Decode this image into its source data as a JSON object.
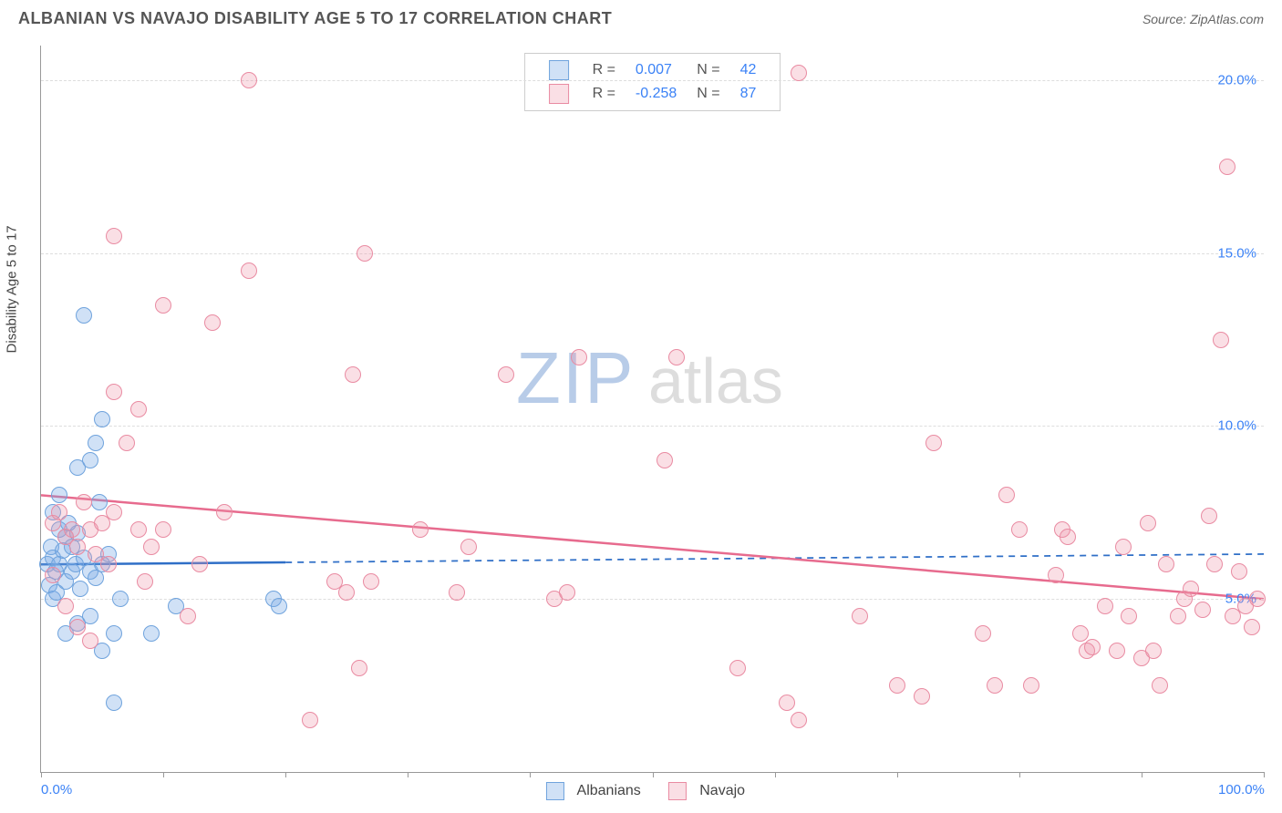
{
  "title": "ALBANIAN VS NAVAJO DISABILITY AGE 5 TO 17 CORRELATION CHART",
  "source_label": "Source: ZipAtlas.com",
  "watermark": {
    "part1": "ZIP",
    "part2": "atlas"
  },
  "chart": {
    "type": "scatter",
    "y_axis_title": "Disability Age 5 to 17",
    "background_color": "#ffffff",
    "grid_color": "#dddddd",
    "axis_color": "#999999",
    "tick_label_color": "#3b82f6",
    "xlim": [
      0,
      100
    ],
    "ylim": [
      0,
      21
    ],
    "x_ticks": [
      0,
      10,
      20,
      30,
      40,
      50,
      60,
      70,
      80,
      90,
      100
    ],
    "x_tick_labels": {
      "0": "0.0%",
      "100": "100.0%"
    },
    "y_gridlines": [
      5,
      10,
      15,
      20
    ],
    "y_tick_labels": {
      "5": "5.0%",
      "10": "10.0%",
      "15": "15.0%",
      "20": "20.0%"
    },
    "point_radius": 9,
    "point_border_width": 1.5,
    "series": [
      {
        "name": "Albanians",
        "fill_color": "rgba(120,170,230,0.35)",
        "stroke_color": "#6fa3dd",
        "r_value": "0.007",
        "n_value": "42",
        "trend": {
          "y_at_x0": 6.0,
          "y_at_x100": 6.3,
          "solid_until_x": 20,
          "line_color": "#2f6fc7",
          "line_width": 2.5
        },
        "points": [
          [
            0.5,
            6.0
          ],
          [
            0.8,
            6.5
          ],
          [
            1.0,
            6.2
          ],
          [
            1.2,
            5.8
          ],
          [
            1.5,
            7.0
          ],
          [
            1.5,
            6.0
          ],
          [
            1.8,
            6.4
          ],
          [
            2.0,
            6.8
          ],
          [
            0.7,
            5.4
          ],
          [
            1.0,
            5.0
          ],
          [
            1.3,
            5.2
          ],
          [
            2.0,
            5.5
          ],
          [
            2.5,
            5.8
          ],
          [
            2.8,
            6.0
          ],
          [
            3.0,
            6.9
          ],
          [
            3.2,
            5.3
          ],
          [
            1.0,
            7.5
          ],
          [
            1.5,
            8.0
          ],
          [
            2.2,
            7.2
          ],
          [
            2.5,
            6.5
          ],
          [
            3.5,
            6.2
          ],
          [
            4.0,
            5.8
          ],
          [
            4.5,
            5.6
          ],
          [
            5.0,
            6.0
          ],
          [
            2.0,
            4.0
          ],
          [
            3.0,
            4.3
          ],
          [
            4.0,
            4.5
          ],
          [
            5.0,
            3.5
          ],
          [
            6.0,
            4.0
          ],
          [
            6.5,
            5.0
          ],
          [
            3.0,
            8.8
          ],
          [
            4.0,
            9.0
          ],
          [
            4.5,
            9.5
          ],
          [
            5.0,
            10.2
          ],
          [
            4.8,
            7.8
          ],
          [
            3.5,
            13.2
          ],
          [
            9.0,
            4.0
          ],
          [
            11.0,
            4.8
          ],
          [
            19.0,
            5.0
          ],
          [
            19.5,
            4.8
          ],
          [
            5.5,
            6.3
          ],
          [
            6.0,
            2.0
          ]
        ]
      },
      {
        "name": "Navajo",
        "fill_color": "rgba(240,150,170,0.30)",
        "stroke_color": "#e98ba2",
        "r_value": "-0.258",
        "n_value": "87",
        "trend": {
          "y_at_x0": 8.0,
          "y_at_x100": 5.0,
          "solid_until_x": 100,
          "line_color": "#e76b8e",
          "line_width": 2.5
        },
        "points": [
          [
            1.0,
            7.2
          ],
          [
            1.5,
            7.5
          ],
          [
            2.0,
            6.8
          ],
          [
            2.5,
            7.0
          ],
          [
            3.0,
            6.5
          ],
          [
            3.5,
            7.8
          ],
          [
            4.0,
            7.0
          ],
          [
            4.5,
            6.3
          ],
          [
            5.0,
            7.2
          ],
          [
            5.5,
            6.0
          ],
          [
            6.0,
            7.5
          ],
          [
            1.0,
            5.7
          ],
          [
            2.0,
            4.8
          ],
          [
            3.0,
            4.2
          ],
          [
            4.0,
            3.8
          ],
          [
            8.0,
            7.0
          ],
          [
            8.5,
            5.5
          ],
          [
            9.0,
            6.5
          ],
          [
            10.0,
            7.0
          ],
          [
            12.0,
            4.5
          ],
          [
            13.0,
            6.0
          ],
          [
            15.0,
            7.5
          ],
          [
            6.0,
            11.0
          ],
          [
            7.0,
            9.5
          ],
          [
            8.0,
            10.5
          ],
          [
            10.0,
            13.5
          ],
          [
            14.0,
            13.0
          ],
          [
            17.0,
            14.5
          ],
          [
            6.0,
            15.5
          ],
          [
            17.0,
            20.0
          ],
          [
            22.0,
            1.5
          ],
          [
            24.0,
            5.5
          ],
          [
            25.0,
            5.2
          ],
          [
            25.5,
            11.5
          ],
          [
            26.0,
            3.0
          ],
          [
            26.5,
            15.0
          ],
          [
            27.0,
            5.5
          ],
          [
            31.0,
            7.0
          ],
          [
            34.0,
            5.2
          ],
          [
            35.0,
            6.5
          ],
          [
            38.0,
            11.5
          ],
          [
            42.0,
            5.0
          ],
          [
            43.0,
            5.2
          ],
          [
            44.0,
            12.0
          ],
          [
            51.0,
            9.0
          ],
          [
            52.0,
            12.0
          ],
          [
            57.0,
            3.0
          ],
          [
            61.0,
            2.0
          ],
          [
            62.0,
            1.5
          ],
          [
            62.0,
            20.2
          ],
          [
            67.0,
            4.5
          ],
          [
            70.0,
            2.5
          ],
          [
            72.0,
            2.2
          ],
          [
            73.0,
            9.5
          ],
          [
            77.0,
            4.0
          ],
          [
            78.0,
            2.5
          ],
          [
            79.0,
            8.0
          ],
          [
            80.0,
            7.0
          ],
          [
            81.0,
            2.5
          ],
          [
            83.0,
            5.7
          ],
          [
            83.5,
            7.0
          ],
          [
            84.0,
            6.8
          ],
          [
            85.0,
            4.0
          ],
          [
            85.5,
            3.5
          ],
          [
            86.0,
            3.6
          ],
          [
            87.0,
            4.8
          ],
          [
            88.0,
            3.5
          ],
          [
            88.5,
            6.5
          ],
          [
            89.0,
            4.5
          ],
          [
            90.0,
            3.3
          ],
          [
            90.5,
            7.2
          ],
          [
            91.0,
            3.5
          ],
          [
            91.5,
            2.5
          ],
          [
            92.0,
            6.0
          ],
          [
            93.0,
            4.5
          ],
          [
            93.5,
            5.0
          ],
          [
            94.0,
            5.3
          ],
          [
            95.0,
            4.7
          ],
          [
            95.5,
            7.4
          ],
          [
            96.0,
            6.0
          ],
          [
            96.5,
            12.5
          ],
          [
            97.0,
            17.5
          ],
          [
            97.5,
            4.5
          ],
          [
            98.0,
            5.8
          ],
          [
            98.5,
            4.8
          ],
          [
            99.0,
            4.2
          ],
          [
            99.5,
            5.0
          ]
        ]
      }
    ],
    "legend_top_labels": {
      "r": "R =",
      "n": "N ="
    },
    "legend_bottom": [
      "Albanians",
      "Navajo"
    ]
  }
}
